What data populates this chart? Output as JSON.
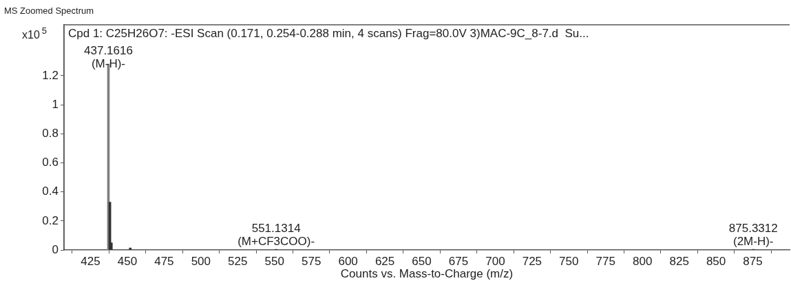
{
  "chart_data": {
    "type": "bar",
    "title": "MS Zoomed Spectrum",
    "subtitle": "Cpd 1: C25H26O7: -ESI Scan (0.171, 0.254-0.288 min, 4 scans) Frag=80.0V 3)MAC-9C_8-7.d  Su...",
    "xlabel": "Counts vs. Mass-to-Charge (m/z)",
    "ylabel": "x10$^{5}$",
    "x": [
      437.1616,
      438.165,
      439.168,
      452.0,
      551.1314,
      875.3312
    ],
    "values": [
      1.28,
      0.33,
      0.05,
      0.015,
      0.005,
      0.005
    ],
    "colors": [
      "#7f7f7f",
      "#333333",
      "#333333",
      "#333333",
      "#333333",
      "#333333"
    ],
    "xlim": [
      407,
      900
    ],
    "xticks": [
      425,
      450,
      475,
      500,
      525,
      550,
      575,
      600,
      625,
      650,
      675,
      700,
      725,
      750,
      775,
      800,
      825,
      850,
      875
    ],
    "ylim": [
      0,
      1.55
    ],
    "yticks": [
      0,
      0.2,
      0.4,
      0.6,
      0.8,
      1,
      1.2
    ],
    "annotations": [
      {
        "text": "437.1616\n(M-H)-",
        "x": 437.1616,
        "y": 1.28
      },
      {
        "text": "551.1314\n(M+CF3COO)-",
        "x": 551.1314,
        "y": 0.005
      },
      {
        "text": "875.3312\n(2M-H)-",
        "x": 875.3312,
        "y": 0.005
      }
    ],
    "grid": false,
    "legend": false
  }
}
